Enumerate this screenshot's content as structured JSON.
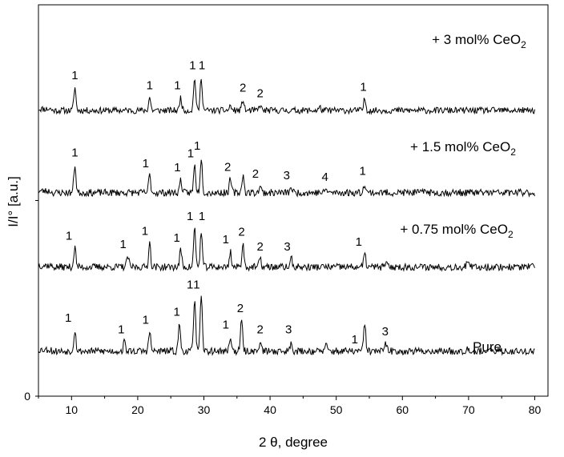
{
  "chart_data": {
    "type": "line",
    "xlabel": "2 θ, degree",
    "ylabel": "I/I° [a.u.]",
    "xlim": [
      5,
      82
    ],
    "xticks": [
      10,
      20,
      30,
      40,
      50,
      60,
      70,
      80
    ],
    "yticks": [
      0
    ],
    "grid": false,
    "series": [
      {
        "name": "+ 3 mol% CeO₂",
        "name_main": "+ 3 mol% CeO",
        "name_sub": "2",
        "baseline": 0.73,
        "noise": 0.0045,
        "seed": 11,
        "peaks": [
          [
            10.5,
            0.06
          ],
          [
            21.8,
            0.034
          ],
          [
            26.5,
            0.034
          ],
          [
            28.6,
            0.085
          ],
          [
            29.6,
            0.085
          ],
          [
            34.0,
            0.012
          ],
          [
            35.9,
            0.028
          ],
          [
            38.5,
            0.014
          ],
          [
            54.3,
            0.03
          ],
          [
            47.5,
            0.008
          ]
        ],
        "labels": [
          {
            "x": 10.5,
            "text": "1"
          },
          {
            "x": 21.8,
            "text": "1"
          },
          {
            "x": 26.0,
            "text": "1"
          },
          {
            "x": 28.3,
            "text": "1"
          },
          {
            "x": 29.7,
            "text": "1"
          },
          {
            "x": 35.9,
            "text": "2"
          },
          {
            "x": 38.5,
            "text": "2"
          },
          {
            "x": 54.1,
            "text": "1"
          }
        ]
      },
      {
        "name": "+ 1.5 mol% CeO₂",
        "name_main": "+ 1.5 mol% CeO",
        "name_sub": "2",
        "baseline": 0.52,
        "noise": 0.005,
        "seed": 23,
        "peaks": [
          [
            10.5,
            0.072
          ],
          [
            21.8,
            0.045
          ],
          [
            26.5,
            0.034
          ],
          [
            28.6,
            0.07
          ],
          [
            29.6,
            0.09
          ],
          [
            34.0,
            0.035
          ],
          [
            35.9,
            0.045
          ],
          [
            38.5,
            0.018
          ],
          [
            43.2,
            0.014
          ],
          [
            48.5,
            0.01
          ],
          [
            54.3,
            0.025
          ],
          [
            63.5,
            0.01
          ]
        ],
        "labels": [
          {
            "x": 10.5,
            "text": "1"
          },
          {
            "x": 21.2,
            "text": "1"
          },
          {
            "x": 26.0,
            "text": "1"
          },
          {
            "x": 28.0,
            "text": "1"
          },
          {
            "x": 29.0,
            "text": "1"
          },
          {
            "x": 33.6,
            "text": "2"
          },
          {
            "x": 37.8,
            "text": "2"
          },
          {
            "x": 42.5,
            "text": "3"
          },
          {
            "x": 48.3,
            "text": "4"
          },
          {
            "x": 54.0,
            "text": "1"
          }
        ]
      },
      {
        "name": "+ 0.75 mol% CeO₂",
        "name_main": "+ 0.75 mol% CeO",
        "name_sub": "2",
        "baseline": 0.33,
        "noise": 0.005,
        "seed": 37,
        "peaks": [
          [
            10.5,
            0.05
          ],
          [
            18.5,
            0.028
          ],
          [
            21.8,
            0.062
          ],
          [
            26.5,
            0.045
          ],
          [
            28.6,
            0.1
          ],
          [
            29.6,
            0.09
          ],
          [
            34.0,
            0.04
          ],
          [
            35.9,
            0.06
          ],
          [
            38.5,
            0.022
          ],
          [
            43.2,
            0.022
          ],
          [
            54.3,
            0.034
          ],
          [
            57.5,
            0.012
          ],
          [
            69.8,
            0.012
          ]
        ],
        "labels": [
          {
            "x": 9.6,
            "text": "1"
          },
          {
            "x": 17.8,
            "text": "1"
          },
          {
            "x": 21.1,
            "text": "1"
          },
          {
            "x": 25.9,
            "text": "1"
          },
          {
            "x": 27.9,
            "text": "1"
          },
          {
            "x": 29.7,
            "text": "1"
          },
          {
            "x": 33.3,
            "text": "1"
          },
          {
            "x": 35.7,
            "text": "2"
          },
          {
            "x": 38.5,
            "text": "2"
          },
          {
            "x": 42.6,
            "text": "3"
          },
          {
            "x": 53.4,
            "text": "1"
          }
        ]
      },
      {
        "name": "Pure",
        "name_main": "Pure",
        "name_sub": "",
        "baseline": 0.115,
        "noise": 0.005,
        "seed": 53,
        "peaks": [
          [
            10.5,
            0.055
          ],
          [
            18.0,
            0.025
          ],
          [
            21.8,
            0.05
          ],
          [
            26.3,
            0.07
          ],
          [
            28.6,
            0.14
          ],
          [
            29.6,
            0.14
          ],
          [
            34.0,
            0.038
          ],
          [
            35.7,
            0.08
          ],
          [
            38.5,
            0.025
          ],
          [
            43.2,
            0.025
          ],
          [
            48.5,
            0.015
          ],
          [
            54.3,
            0.072
          ],
          [
            57.5,
            0.02
          ],
          [
            69.8,
            0.012
          ]
        ],
        "labels": [
          {
            "x": 9.5,
            "text": "1"
          },
          {
            "x": 17.5,
            "text": "1"
          },
          {
            "x": 21.2,
            "text": "1"
          },
          {
            "x": 25.9,
            "text": "1"
          },
          {
            "x": 27.9,
            "text": "1"
          },
          {
            "x": 28.9,
            "text": "1"
          },
          {
            "x": 33.3,
            "text": "1"
          },
          {
            "x": 35.5,
            "text": "2"
          },
          {
            "x": 38.5,
            "text": "2"
          },
          {
            "x": 42.8,
            "text": "3"
          },
          {
            "x": 52.8,
            "text": "1"
          },
          {
            "x": 57.4,
            "text": "3"
          }
        ]
      }
    ]
  }
}
